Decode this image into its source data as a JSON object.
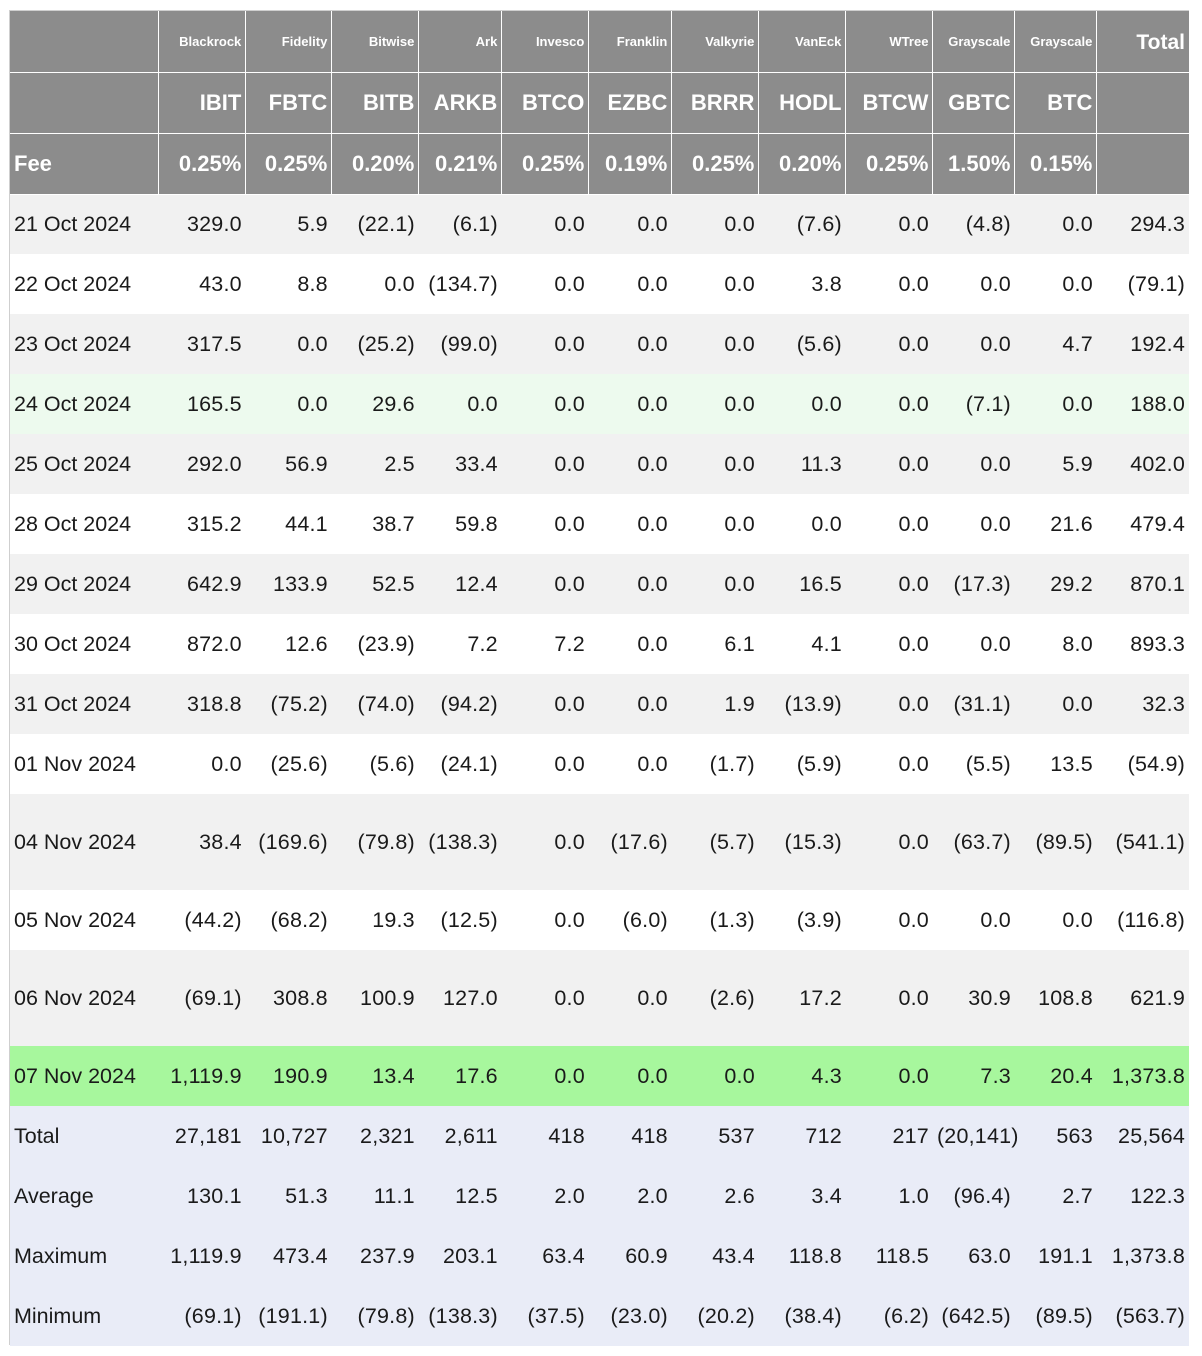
{
  "header": {
    "issuers": [
      "Blackrock",
      "Fidelity",
      "Bitwise",
      "Ark",
      "Invesco",
      "Franklin",
      "Valkyrie",
      "VanEck",
      "WTree",
      "Grayscale",
      "Grayscale"
    ],
    "total_label": "Total",
    "tickers": [
      "IBIT",
      "FBTC",
      "BITB",
      "ARKB",
      "BTCO",
      "EZBC",
      "BRRR",
      "HODL",
      "BTCW",
      "GBTC",
      "BTC"
    ],
    "fee_label": "Fee",
    "fees": [
      "0.25%",
      "0.25%",
      "0.20%",
      "0.21%",
      "0.25%",
      "0.19%",
      "0.25%",
      "0.20%",
      "0.25%",
      "1.50%",
      "0.15%"
    ]
  },
  "rows": [
    {
      "label": "21 Oct 2024",
      "values": [
        "329.0",
        "5.9",
        "(22.1)",
        "(6.1)",
        "0.0",
        "0.0",
        "0.0",
        "(7.6)",
        "0.0",
        "(4.8)",
        "0.0",
        "294.3"
      ]
    },
    {
      "label": "22 Oct 2024",
      "values": [
        "43.0",
        "8.8",
        "0.0",
        "(134.7)",
        "0.0",
        "0.0",
        "0.0",
        "3.8",
        "0.0",
        "0.0",
        "0.0",
        "(79.1)"
      ]
    },
    {
      "label": "23 Oct 2024",
      "values": [
        "317.5",
        "0.0",
        "(25.2)",
        "(99.0)",
        "0.0",
        "0.0",
        "0.0",
        "(5.6)",
        "0.0",
        "0.0",
        "4.7",
        "192.4"
      ]
    },
    {
      "label": "24 Oct 2024",
      "values": [
        "165.5",
        "0.0",
        "29.6",
        "0.0",
        "0.0",
        "0.0",
        "0.0",
        "0.0",
        "0.0",
        "(7.1)",
        "0.0",
        "188.0"
      ]
    },
    {
      "label": "25 Oct 2024",
      "values": [
        "292.0",
        "56.9",
        "2.5",
        "33.4",
        "0.0",
        "0.0",
        "0.0",
        "11.3",
        "0.0",
        "0.0",
        "5.9",
        "402.0"
      ]
    },
    {
      "label": "28 Oct 2024",
      "values": [
        "315.2",
        "44.1",
        "38.7",
        "59.8",
        "0.0",
        "0.0",
        "0.0",
        "0.0",
        "0.0",
        "0.0",
        "21.6",
        "479.4"
      ]
    },
    {
      "label": "29 Oct 2024",
      "values": [
        "642.9",
        "133.9",
        "52.5",
        "12.4",
        "0.0",
        "0.0",
        "0.0",
        "16.5",
        "0.0",
        "(17.3)",
        "29.2",
        "870.1"
      ]
    },
    {
      "label": "30 Oct 2024",
      "values": [
        "872.0",
        "12.6",
        "(23.9)",
        "7.2",
        "7.2",
        "0.0",
        "6.1",
        "4.1",
        "0.0",
        "0.0",
        "8.0",
        "893.3"
      ]
    },
    {
      "label": "31 Oct 2024",
      "values": [
        "318.8",
        "(75.2)",
        "(74.0)",
        "(94.2)",
        "0.0",
        "0.0",
        "1.9",
        "(13.9)",
        "0.0",
        "(31.1)",
        "0.0",
        "32.3"
      ]
    },
    {
      "label": "01 Nov 2024",
      "values": [
        "0.0",
        "(25.6)",
        "(5.6)",
        "(24.1)",
        "0.0",
        "0.0",
        "(1.7)",
        "(5.9)",
        "0.0",
        "(5.5)",
        "13.5",
        "(54.9)"
      ]
    },
    {
      "label": "04 Nov 2024",
      "values": [
        "38.4",
        "(169.6)",
        "(79.8)",
        "(138.3)",
        "0.0",
        "(17.6)",
        "(5.7)",
        "(15.3)",
        "0.0",
        "(63.7)",
        "(89.5)",
        "(541.1)"
      ]
    },
    {
      "label": "05 Nov 2024",
      "values": [
        "(44.2)",
        "(68.2)",
        "19.3",
        "(12.5)",
        "0.0",
        "(6.0)",
        "(1.3)",
        "(3.9)",
        "0.0",
        "0.0",
        "0.0",
        "(116.8)"
      ]
    },
    {
      "label": "06 Nov 2024",
      "values": [
        "(69.1)",
        "308.8",
        "100.9",
        "127.0",
        "0.0",
        "0.0",
        "(2.6)",
        "17.2",
        "0.0",
        "30.9",
        "108.8",
        "621.9"
      ]
    },
    {
      "label": "07 Nov 2024",
      "values": [
        "1,119.9",
        "190.9",
        "13.4",
        "17.6",
        "0.0",
        "0.0",
        "0.0",
        "4.3",
        "0.0",
        "7.3",
        "20.4",
        "1,373.8"
      ]
    }
  ],
  "summary": [
    {
      "label": "Total",
      "values": [
        "27,181",
        "10,727",
        "2,321",
        "2,611",
        "418",
        "418",
        "537",
        "712",
        "217",
        "(20,141)",
        "563",
        "25,564"
      ]
    },
    {
      "label": "Average",
      "values": [
        "130.1",
        "51.3",
        "11.1",
        "12.5",
        "2.0",
        "2.0",
        "2.6",
        "3.4",
        "1.0",
        "(96.4)",
        "2.7",
        "122.3"
      ]
    },
    {
      "label": "Maximum",
      "values": [
        "1,119.9",
        "473.4",
        "237.9",
        "203.1",
        "63.4",
        "60.9",
        "43.4",
        "118.8",
        "118.5",
        "63.0",
        "191.1",
        "1,373.8"
      ]
    },
    {
      "label": "Minimum",
      "values": [
        "(69.1)",
        "(191.1)",
        "(79.8)",
        "(138.3)",
        "(37.5)",
        "(23.0)",
        "(20.2)",
        "(38.4)",
        "(6.2)",
        "(642.5)",
        "(89.5)",
        "(563.7)"
      ]
    }
  ],
  "colors": {
    "header_bg": "#8c8c8c",
    "negative_text": "#e0392b",
    "row_alt_bg": "#f1f1f1",
    "highlight_light_green": "#edfaee",
    "highlight_green": "#a7f79d",
    "summary_bg": "#e9ecf7"
  }
}
